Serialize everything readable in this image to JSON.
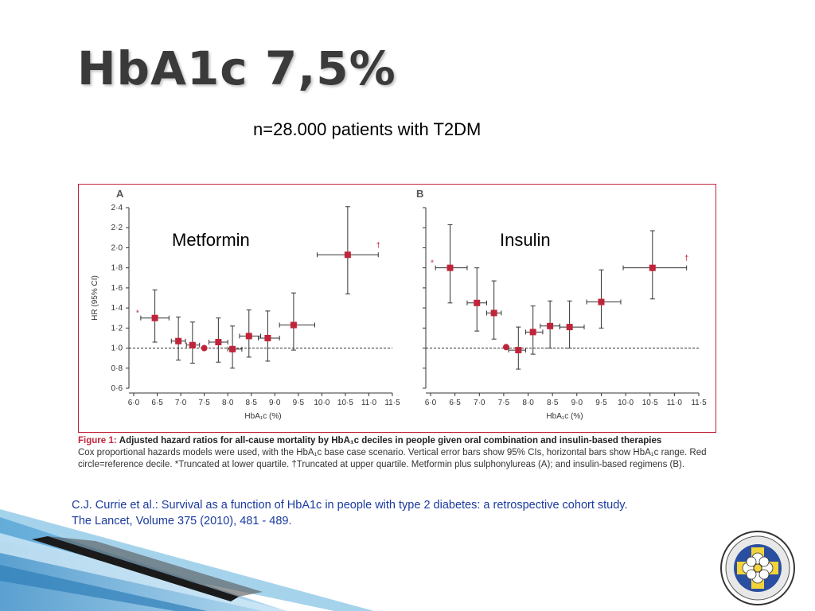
{
  "slide": {
    "title": "HbA1c 7,5%",
    "subtitle": "n=28.000 patients with T2DM",
    "caption_head": "Figure 1:",
    "caption_title": "Adjusted hazard ratios for all-cause mortality by HbA₁c deciles in people given oral combination and insulin-based therapies",
    "caption_body": "Cox proportional hazards models were used, with the HbA₁c base case scenario. Vertical error bars show 95% CIs, horizontal bars show HbA₁c range. Red circle=reference decile. *Truncated at lower quartile. †Truncated at upper quartile. Metformin plus sulphonylureas (A); and insulin-based regimens (B).",
    "citation_line1": "C.J. Currie et al.: Survival as a function of HbA1c in people with type 2 diabetes: a retrospective cohort study.",
    "citation_line2": "The Lancet, Volume 375 (2010), 481 - 489."
  },
  "colors": {
    "marker": "#c0243a",
    "frame": "#c0243a",
    "citation": "#1a3aa0",
    "decor_blue": "#4aa3d8",
    "decor_dark": "#1a1a1a"
  },
  "chart_data": [
    {
      "type": "scatter",
      "panel": "A",
      "drug_label": "Metformin",
      "ylabel": "HR (95% CI)",
      "xlabel": "HbA₁c (%)",
      "xlim": [
        6.0,
        11.5
      ],
      "ylim": [
        0.6,
        2.4
      ],
      "xticks": [
        "6·0",
        "6·5",
        "7·0",
        "7·5",
        "8·0",
        "8·5",
        "9·0",
        "9·5",
        "10·0",
        "10·5",
        "11·0",
        "11·5"
      ],
      "yticks": [
        "0·6",
        "0·8",
        "1·0",
        "1·2",
        "1·4",
        "1·6",
        "1·8",
        "2·0",
        "2·2",
        "2·4"
      ],
      "reference_line": 1.0,
      "points": [
        {
          "x": 6.45,
          "y": 1.3,
          "ylo": 1.06,
          "yhi": 1.58,
          "xlo": 6.15,
          "xhi": 6.75,
          "note": "*"
        },
        {
          "x": 6.95,
          "y": 1.07,
          "ylo": 0.88,
          "yhi": 1.31,
          "xlo": 6.8,
          "xhi": 7.1
        },
        {
          "x": 7.25,
          "y": 1.03,
          "ylo": 0.85,
          "yhi": 1.26,
          "xlo": 7.12,
          "xhi": 7.4
        },
        {
          "x": 7.5,
          "y": 1.0,
          "reference": true
        },
        {
          "x": 7.8,
          "y": 1.06,
          "ylo": 0.86,
          "yhi": 1.3,
          "xlo": 7.6,
          "xhi": 8.0
        },
        {
          "x": 8.1,
          "y": 0.99,
          "ylo": 0.8,
          "yhi": 1.22,
          "xlo": 8.0,
          "xhi": 8.3
        },
        {
          "x": 8.45,
          "y": 1.12,
          "ylo": 0.91,
          "yhi": 1.38,
          "xlo": 8.25,
          "xhi": 8.7
        },
        {
          "x": 8.85,
          "y": 1.1,
          "ylo": 0.87,
          "yhi": 1.37,
          "xlo": 8.65,
          "xhi": 9.1
        },
        {
          "x": 9.4,
          "y": 1.23,
          "ylo": 0.98,
          "yhi": 1.55,
          "xlo": 9.1,
          "xhi": 9.85
        },
        {
          "x": 10.55,
          "y": 1.93,
          "ylo": 1.54,
          "yhi": 2.41,
          "xlo": 9.9,
          "xhi": 11.2,
          "note": "†"
        }
      ]
    },
    {
      "type": "scatter",
      "panel": "B",
      "drug_label": "Insulin",
      "xlabel": "HbA₁c (%)",
      "xlim": [
        6.0,
        11.5
      ],
      "ylim": [
        0.6,
        2.4
      ],
      "xticks": [
        "6·0",
        "6·5",
        "7·0",
        "7·5",
        "8·0",
        "8·5",
        "9·0",
        "9·5",
        "10·0",
        "10·5",
        "11·0",
        "11·5"
      ],
      "reference_line": 1.0,
      "points": [
        {
          "x": 6.4,
          "y": 1.8,
          "ylo": 1.45,
          "yhi": 2.23,
          "xlo": 6.1,
          "xhi": 6.75,
          "note": "*"
        },
        {
          "x": 6.95,
          "y": 1.45,
          "ylo": 1.17,
          "yhi": 1.8,
          "xlo": 6.75,
          "xhi": 7.15
        },
        {
          "x": 7.3,
          "y": 1.35,
          "ylo": 1.09,
          "yhi": 1.67,
          "xlo": 7.15,
          "xhi": 7.45
        },
        {
          "x": 7.55,
          "y": 1.01,
          "reference": true
        },
        {
          "x": 7.8,
          "y": 0.98,
          "ylo": 0.79,
          "yhi": 1.21,
          "xlo": 7.6,
          "xhi": 7.95
        },
        {
          "x": 8.1,
          "y": 1.16,
          "ylo": 0.94,
          "yhi": 1.42,
          "xlo": 7.95,
          "xhi": 8.3
        },
        {
          "x": 8.45,
          "y": 1.22,
          "ylo": 1.0,
          "yhi": 1.47,
          "xlo": 8.25,
          "xhi": 8.65
        },
        {
          "x": 8.85,
          "y": 1.21,
          "ylo": 1.0,
          "yhi": 1.47,
          "xlo": 8.65,
          "xhi": 9.15
        },
        {
          "x": 9.5,
          "y": 1.46,
          "ylo": 1.2,
          "yhi": 1.78,
          "xlo": 9.2,
          "xhi": 9.9
        },
        {
          "x": 10.55,
          "y": 1.8,
          "ylo": 1.49,
          "yhi": 2.17,
          "xlo": 9.95,
          "xhi": 11.25,
          "note": "†"
        }
      ]
    }
  ]
}
